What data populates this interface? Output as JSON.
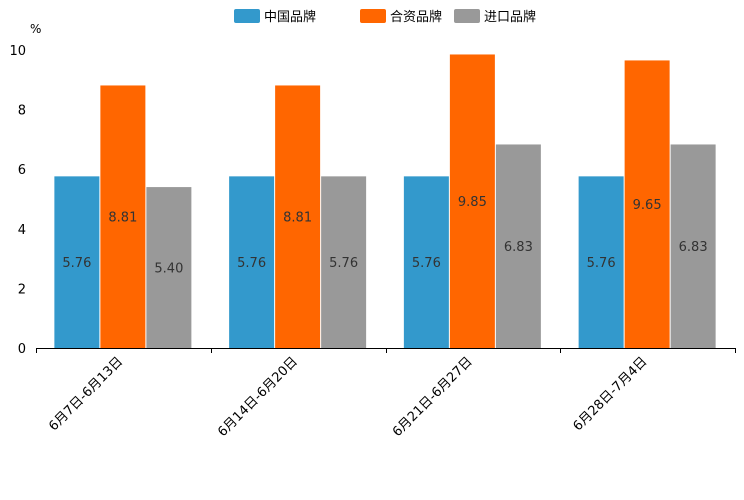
{
  "chart_data": {
    "type": "bar",
    "title": "",
    "xlabel": "",
    "ylabel": "%",
    "ylim": [
      0,
      10
    ],
    "yticks": [
      0,
      2,
      4,
      6,
      8,
      10
    ],
    "grid": false,
    "legend_position": "top-center",
    "categories": [
      "6月7日-6月13日",
      "6月14日-6月20日",
      "6月21日-6月27日",
      "6月28日-7月4日"
    ],
    "series": [
      {
        "name": "中国品牌",
        "color": "#3399cc",
        "values": [
          5.76,
          5.76,
          5.76,
          5.76
        ],
        "labels": [
          "5.76",
          "5.76",
          "5.76",
          "5.76"
        ]
      },
      {
        "name": "合资品牌",
        "color": "#ff6600",
        "values": [
          8.81,
          8.81,
          9.85,
          9.65
        ],
        "labels": [
          "8.81",
          "8.81",
          "9.85",
          "9.65"
        ]
      },
      {
        "name": "进口品牌",
        "color": "#999999",
        "values": [
          5.4,
          5.76,
          6.83,
          6.83
        ],
        "labels": [
          "5.40",
          "5.76",
          "6.83",
          "6.83"
        ]
      }
    ]
  }
}
